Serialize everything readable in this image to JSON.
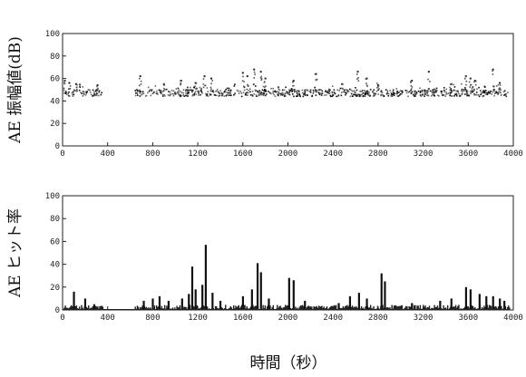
{
  "chart_data": [
    {
      "type": "scatter",
      "ylabel": "AE 振幅値(dB)",
      "xlabel": "",
      "xlim": [
        0,
        4000
      ],
      "ylim": [
        0,
        100
      ],
      "xticks": [
        0,
        400,
        800,
        1200,
        1600,
        2000,
        2400,
        2800,
        3200,
        3600,
        4000
      ],
      "yticks": [
        0,
        20,
        40,
        60,
        80,
        100
      ],
      "grid": false,
      "gaps": [
        [
          360,
          640
        ]
      ],
      "baseline_band": [
        44,
        50
      ],
      "peaks": [
        {
          "x": 20,
          "y": 58
        },
        {
          "x": 60,
          "y": 56
        },
        {
          "x": 120,
          "y": 55
        },
        {
          "x": 310,
          "y": 54
        },
        {
          "x": 690,
          "y": 62
        },
        {
          "x": 900,
          "y": 55
        },
        {
          "x": 1050,
          "y": 58
        },
        {
          "x": 1180,
          "y": 56
        },
        {
          "x": 1260,
          "y": 62
        },
        {
          "x": 1320,
          "y": 60
        },
        {
          "x": 1600,
          "y": 65
        },
        {
          "x": 1640,
          "y": 62
        },
        {
          "x": 1700,
          "y": 68
        },
        {
          "x": 1760,
          "y": 66
        },
        {
          "x": 1800,
          "y": 60
        },
        {
          "x": 2050,
          "y": 58
        },
        {
          "x": 2250,
          "y": 64
        },
        {
          "x": 2480,
          "y": 55
        },
        {
          "x": 2620,
          "y": 66
        },
        {
          "x": 2700,
          "y": 60
        },
        {
          "x": 2800,
          "y": 54
        },
        {
          "x": 3100,
          "y": 58
        },
        {
          "x": 3250,
          "y": 66
        },
        {
          "x": 3450,
          "y": 55
        },
        {
          "x": 3580,
          "y": 62
        },
        {
          "x": 3620,
          "y": 60
        },
        {
          "x": 3660,
          "y": 58
        },
        {
          "x": 3820,
          "y": 68
        },
        {
          "x": 3880,
          "y": 56
        }
      ]
    },
    {
      "type": "bar",
      "ylabel": "AE ヒット率",
      "xlabel": "時間（秒）",
      "xlim": [
        0,
        4000
      ],
      "ylim": [
        0,
        100
      ],
      "xticks": [
        0,
        400,
        800,
        1200,
        1600,
        2000,
        2400,
        2800,
        3200,
        3600,
        4000
      ],
      "yticks": [
        0,
        20,
        40,
        60,
        80,
        100
      ],
      "grid": false,
      "gaps": [
        [
          360,
          640
        ]
      ],
      "spikes": [
        {
          "x": 100,
          "y": 16
        },
        {
          "x": 200,
          "y": 10
        },
        {
          "x": 280,
          "y": 5
        },
        {
          "x": 720,
          "y": 8
        },
        {
          "x": 800,
          "y": 10
        },
        {
          "x": 860,
          "y": 12
        },
        {
          "x": 940,
          "y": 8
        },
        {
          "x": 1060,
          "y": 10
        },
        {
          "x": 1120,
          "y": 14
        },
        {
          "x": 1150,
          "y": 38
        },
        {
          "x": 1180,
          "y": 18
        },
        {
          "x": 1240,
          "y": 22
        },
        {
          "x": 1270,
          "y": 57
        },
        {
          "x": 1330,
          "y": 15
        },
        {
          "x": 1400,
          "y": 8
        },
        {
          "x": 1600,
          "y": 12
        },
        {
          "x": 1680,
          "y": 18
        },
        {
          "x": 1730,
          "y": 41
        },
        {
          "x": 1760,
          "y": 33
        },
        {
          "x": 1830,
          "y": 10
        },
        {
          "x": 2010,
          "y": 28
        },
        {
          "x": 2050,
          "y": 26
        },
        {
          "x": 2150,
          "y": 8
        },
        {
          "x": 2450,
          "y": 6
        },
        {
          "x": 2550,
          "y": 12
        },
        {
          "x": 2630,
          "y": 15
        },
        {
          "x": 2700,
          "y": 10
        },
        {
          "x": 2830,
          "y": 32
        },
        {
          "x": 2860,
          "y": 25
        },
        {
          "x": 3100,
          "y": 6
        },
        {
          "x": 3350,
          "y": 8
        },
        {
          "x": 3450,
          "y": 10
        },
        {
          "x": 3580,
          "y": 20
        },
        {
          "x": 3620,
          "y": 18
        },
        {
          "x": 3700,
          "y": 14
        },
        {
          "x": 3760,
          "y": 12
        },
        {
          "x": 3820,
          "y": 12
        },
        {
          "x": 3880,
          "y": 10
        },
        {
          "x": 3920,
          "y": 8
        }
      ]
    }
  ]
}
